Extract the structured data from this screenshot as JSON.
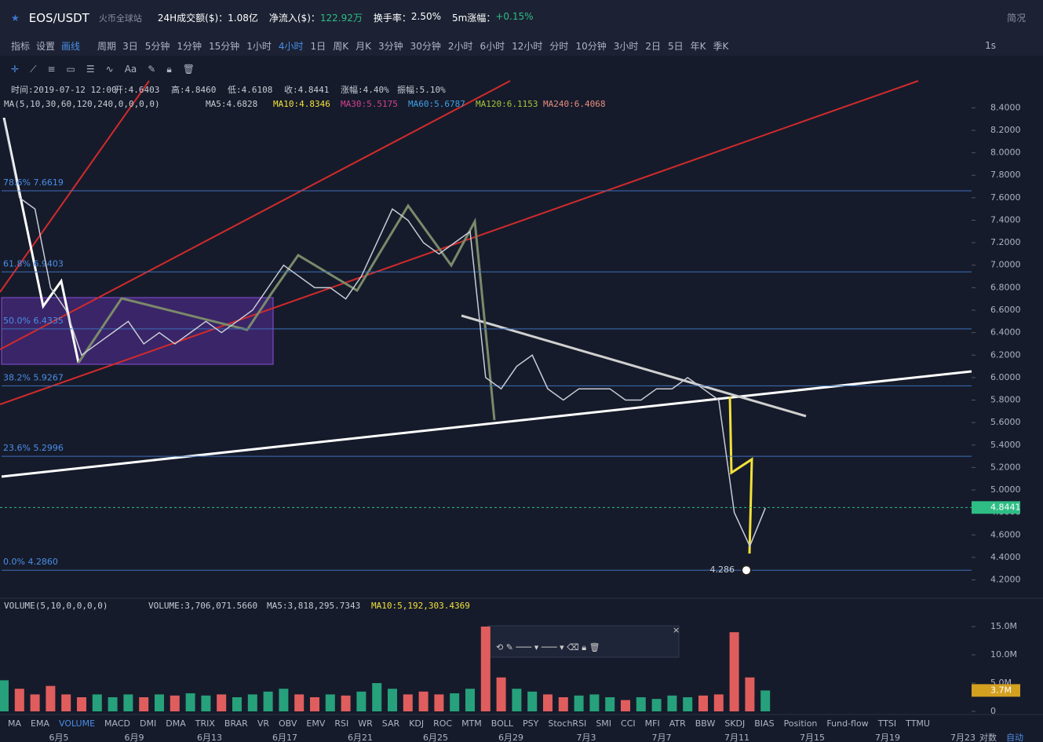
{
  "header": {
    "symbol": "EOS/USDT",
    "exchange": "火币全球站",
    "stats": [
      {
        "label": "24H成交额($)：",
        "value": "1.08亿"
      },
      {
        "label": "净流入($)：",
        "value": "122.92万"
      },
      {
        "label": "换手率：",
        "value": "2.50%"
      },
      {
        "label": "5m涨幅：",
        "value": "+0.15%"
      }
    ],
    "summary": "简况"
  },
  "toolbar": {
    "indicators": "指标",
    "settings": "设置",
    "draw": "画线",
    "period": "周期",
    "periods": [
      "3日",
      "5分钟",
      "1分钟",
      "15分钟",
      "1小时",
      "4小时",
      "1日",
      "周K",
      "月K",
      "3分钟",
      "30分钟",
      "2小时",
      "6小时",
      "12小时",
      "分时",
      "10分钟",
      "3小时",
      "2日",
      "5日",
      "年K",
      "季K"
    ],
    "active_period": "4小时",
    "interval": "1s",
    "text_tool": "Aa"
  },
  "info": {
    "line": [
      "时间:2019-07-12 12:00",
      "开:4.6403",
      "高:4.8460",
      "低:4.6108",
      "收:4.8441",
      "涨幅:4.40%",
      "振幅:5.10%"
    ],
    "ma_title": "MA(5,10,30,60,120,240,0,0,0,0)",
    "ma": [
      "MA5:4.6828",
      "MA10:4.8346",
      "MA30:5.5175",
      "MA60:5.6787",
      "MA120:6.1153",
      "MA240:6.4068"
    ],
    "volume_title": "VOLUME(5,10,0,0,0,0)",
    "volume": [
      "VOLUME:3,706,071.5660",
      "MA5:3,818,295.7343",
      "MA10:5,192,303.4369"
    ]
  },
  "chart_data": [
    {
      "type": "line",
      "ylim": [
        4.05,
        8.64
      ],
      "yticks": [
        {
          "value": 4.2,
          "label": "4.2000"
        },
        {
          "value": 4.4,
          "label": "4.4000"
        },
        {
          "value": 4.6,
          "label": "4.6000"
        },
        {
          "value": 4.8,
          "label": "4.8000"
        },
        {
          "value": 5.0,
          "label": "5.0000"
        },
        {
          "value": 5.2,
          "label": "5.2000"
        },
        {
          "value": 5.4,
          "label": "5.4000"
        },
        {
          "value": 5.6,
          "label": "5.6000"
        },
        {
          "value": 5.8,
          "label": "5.8000"
        },
        {
          "value": 6.0,
          "label": "6.0000"
        },
        {
          "value": 6.2,
          "label": "6.2000"
        },
        {
          "value": 6.4,
          "label": "6.4000"
        },
        {
          "value": 6.6,
          "label": "6.6000"
        },
        {
          "value": 6.8,
          "label": "6.8000"
        },
        {
          "value": 7.0,
          "label": "7.0000"
        },
        {
          "value": 7.2,
          "label": "7.2000"
        },
        {
          "value": 7.4,
          "label": "7.4000"
        },
        {
          "value": 7.6,
          "label": "7.6000"
        },
        {
          "value": 7.8,
          "label": "7.8000"
        },
        {
          "value": 8.0,
          "label": "8.0000"
        },
        {
          "value": 8.2,
          "label": "8.2000"
        },
        {
          "value": 8.4,
          "label": "8.4000"
        }
      ],
      "values": [
        8.3,
        7.6,
        7.5,
        6.8,
        6.6,
        6.2,
        6.3,
        6.4,
        6.5,
        6.3,
        6.4,
        6.3,
        6.4,
        6.5,
        6.4,
        6.5,
        6.6,
        6.8,
        7.0,
        6.9,
        6.8,
        6.8,
        6.7,
        6.9,
        7.2,
        7.5,
        7.4,
        7.2,
        7.1,
        7.2,
        7.3,
        6.0,
        5.9,
        6.1,
        6.2,
        5.9,
        5.8,
        5.9,
        5.9,
        5.9,
        5.8,
        5.8,
        5.9,
        5.9,
        6.0,
        5.9,
        5.8,
        4.8,
        4.5,
        4.84
      ],
      "color": "#c8ccd6",
      "fib": [
        {
          "value": 7.6619,
          "label": "78.6% 7.6619"
        },
        {
          "value": 6.9403,
          "label": "61.8% 6.9403"
        },
        {
          "value": 6.4335,
          "label": "50.0% 6.4335"
        },
        {
          "value": 5.9267,
          "label": "38.2% 5.9267"
        },
        {
          "value": 5.2996,
          "label": "23.6% 5.2996"
        },
        {
          "value": 4.286,
          "label": "0.0% 4.2860"
        }
      ],
      "last_price": 4.8441,
      "low": 4.286
    },
    {
      "type": "bar",
      "ylim": [
        0,
        16.8
      ],
      "yticks": [
        {
          "value": 15,
          "label": "15.0M"
        },
        {
          "value": 10,
          "label": "10.0M"
        },
        {
          "value": 5,
          "label": "5.0M"
        },
        0
      ],
      "values": [
        5.5,
        4,
        3,
        4.5,
        3,
        2.5,
        3,
        2.5,
        3,
        2.5,
        3,
        2.8,
        3.2,
        2.8,
        3,
        2.5,
        3,
        3.5,
        4,
        3,
        2.5,
        3,
        2.8,
        3.5,
        5,
        4,
        3,
        3.5,
        3,
        3.2,
        4,
        15,
        6,
        4,
        3.5,
        3,
        2.5,
        2.8,
        3,
        2.5,
        2,
        2.5,
        2.2,
        2.8,
        2.5,
        2.8,
        3,
        14,
        6,
        3.7
      ],
      "last": {
        "value": 3.7,
        "label": "3.7M"
      }
    }
  ],
  "tabs": [
    "MA",
    "EMA",
    "VOLUME",
    "MACD",
    "DMI",
    "DMA",
    "TRIX",
    "BRAR",
    "VR",
    "OBV",
    "EMV",
    "RSI",
    "WR",
    "SAR",
    "KDJ",
    "ROC",
    "MTM",
    "BOLL",
    "PSY",
    "StochRSI",
    "SMI",
    "CCI",
    "MFI",
    "ATR",
    "BBW",
    "SKDJ",
    "BIAS",
    "Position",
    "Fund-flow",
    "TTSI",
    "TTMU"
  ],
  "dates": [
    "6月5",
    "6月9",
    "6月13",
    "6月17",
    "6月21",
    "6月25",
    "6月29",
    "7月3",
    "7月7",
    "7月11",
    "7月15",
    "7月19",
    "7月23"
  ],
  "axis_modes": [
    "对数",
    "自动"
  ]
}
